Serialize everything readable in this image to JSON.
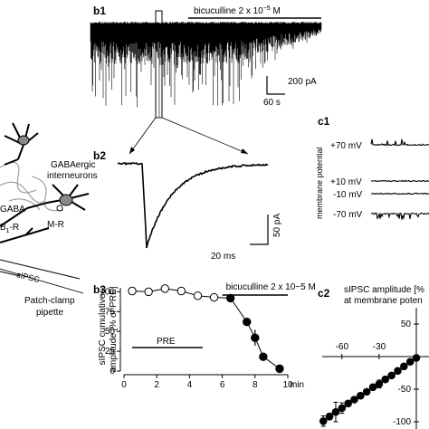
{
  "panels": {
    "b1": "b1",
    "b2": "b2",
    "b3": "b3",
    "c1": "c1",
    "c2": "c2"
  },
  "b1": {
    "drug_label": "bicuculline 2 x 10",
    "drug_exp": "−5",
    "drug_unit": " M",
    "scale_y": "200 pA",
    "scale_x": "60 s"
  },
  "b2": {
    "scale_y": "50 pA",
    "scale_x": "20 ms"
  },
  "schematic": {
    "interneurons": "GABAergic",
    "interneurons2": "interneurons",
    "gaba": "GABA",
    "receptor_b": "B",
    "receptor_sub": "1",
    "receptor_r": "-R",
    "mr": "M-R",
    "sipsc": "sIPSC",
    "pipette1": "Patch-clamp",
    "pipette2": "pipette"
  },
  "c1": {
    "axis_label": "membrane potential",
    "traces": [
      "+70 mV",
      "+10 mV",
      "-10 mV",
      "-70 mV"
    ]
  },
  "c2": {
    "title1": "sIPSC amplitude [%",
    "title2": "at membrane poten",
    "colors": {
      "marker": "#000000"
    }
  },
  "chart_data": [
    {
      "type": "scatter",
      "panel": "b3",
      "ylabel": "sIPSC cumulative amplitude [% of PRE]",
      "xlabel": "min",
      "xlim": [
        0,
        10
      ],
      "ylim": [
        0,
        105
      ],
      "xticks": [
        0,
        2,
        4,
        6,
        8,
        10
      ],
      "yticks": [
        0,
        25,
        50,
        75,
        100
      ],
      "series": [
        {
          "x": [
            0.5,
            1.5,
            2.5,
            3.5,
            4.5,
            5.5,
            6.5,
            7.5,
            8.0,
            8.5,
            9.5
          ],
          "y": [
            101,
            100,
            104,
            101,
            95,
            93,
            92,
            62,
            42,
            18,
            3
          ],
          "err": [
            0,
            0,
            0,
            0,
            0,
            0,
            0,
            0,
            10,
            0,
            0
          ],
          "filled": [
            false,
            false,
            false,
            false,
            false,
            false,
            true,
            true,
            true,
            true,
            true
          ]
        }
      ],
      "bars": [
        {
          "label": "bicuculline 2 x 10−5 M",
          "x": [
            6,
            10
          ]
        },
        {
          "label": "PRE",
          "x": [
            0.5,
            4.8
          ]
        }
      ]
    },
    {
      "type": "scatter",
      "panel": "c2",
      "xticks": [
        -60,
        -30
      ],
      "yticks": [
        50,
        -50,
        -100
      ],
      "x": [
        -75,
        -70,
        -65,
        -60,
        -55,
        -50,
        -45,
        -40,
        -35,
        -30,
        -25,
        -20,
        -15,
        -10,
        -5,
        0
      ],
      "y": [
        -99,
        -92,
        -85,
        -79,
        -72,
        -66,
        -60,
        -54,
        -47,
        -42,
        -35,
        -29,
        -22,
        -15,
        -8,
        -2
      ],
      "err": [
        8,
        5,
        15,
        8,
        4,
        4,
        3,
        4,
        3,
        6,
        3,
        3,
        3,
        3,
        3,
        3
      ]
    }
  ]
}
